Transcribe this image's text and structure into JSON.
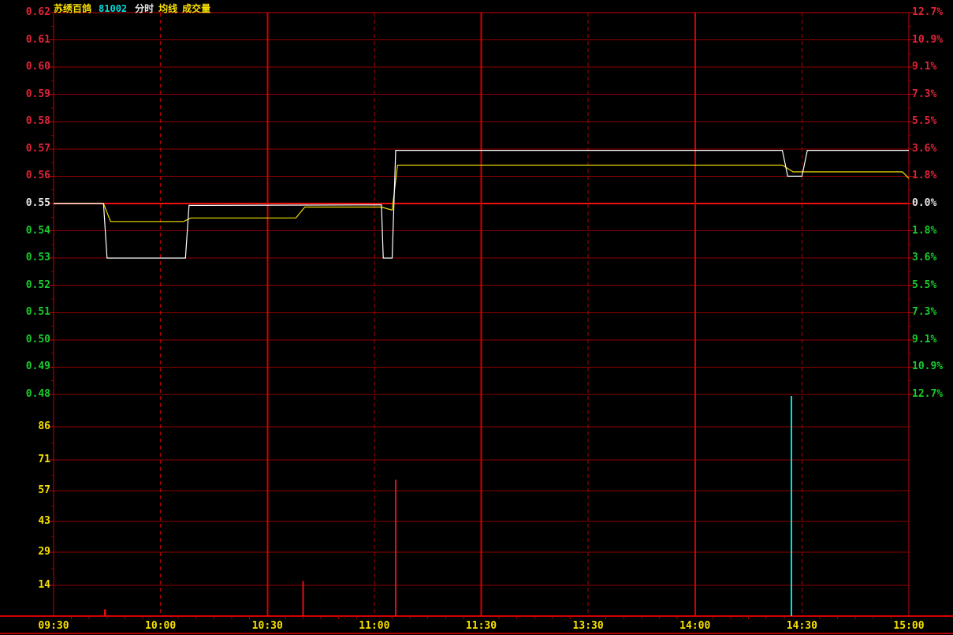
{
  "header": {
    "stock_name": "苏绣百鸽",
    "stock_code": "81002",
    "mode_minute": "分时",
    "mode_avgline": "均线",
    "mode_volume": "成交量"
  },
  "colors": {
    "background": "#000000",
    "up": "#e02438",
    "down": "#18cc2c",
    "flat": "#e6e6e6",
    "yellow": "#f8e000",
    "cyan": "#00dddd",
    "grid": "#8e0000",
    "grid_mid": "#f01010",
    "v_solid": "#d40000",
    "v_dashed": "#b40000",
    "border": "#c80000",
    "price_line": "#ffffff",
    "avg_line": "#f0dc00",
    "vol_bar_red": "#e01010",
    "vol_bar_cyan": "#00e0e0"
  },
  "price_axis": {
    "labels": [
      {
        "text": "0.62",
        "value": 0.62,
        "tone": "up"
      },
      {
        "text": "0.61",
        "value": 0.61,
        "tone": "up"
      },
      {
        "text": "0.60",
        "value": 0.6,
        "tone": "up"
      },
      {
        "text": "0.59",
        "value": 0.59,
        "tone": "up"
      },
      {
        "text": "0.58",
        "value": 0.58,
        "tone": "up"
      },
      {
        "text": "0.57",
        "value": 0.57,
        "tone": "up"
      },
      {
        "text": "0.56",
        "value": 0.56,
        "tone": "up"
      },
      {
        "text": "0.55",
        "value": 0.55,
        "tone": "flat"
      },
      {
        "text": "0.54",
        "value": 0.54,
        "tone": "down"
      },
      {
        "text": "0.53",
        "value": 0.53,
        "tone": "down"
      },
      {
        "text": "0.52",
        "value": 0.52,
        "tone": "down"
      },
      {
        "text": "0.51",
        "value": 0.51,
        "tone": "down"
      },
      {
        "text": "0.50",
        "value": 0.5,
        "tone": "down"
      },
      {
        "text": "0.49",
        "value": 0.49,
        "tone": "down"
      },
      {
        "text": "0.48",
        "value": 0.48,
        "tone": "down"
      }
    ]
  },
  "percent_axis": {
    "labels": [
      {
        "text": "12.7%",
        "value": 0.62,
        "tone": "up"
      },
      {
        "text": "10.9%",
        "value": 0.61,
        "tone": "up"
      },
      {
        "text": "9.1%",
        "value": 0.6,
        "tone": "up"
      },
      {
        "text": "7.3%",
        "value": 0.59,
        "tone": "up"
      },
      {
        "text": "5.5%",
        "value": 0.58,
        "tone": "up"
      },
      {
        "text": "3.6%",
        "value": 0.57,
        "tone": "up"
      },
      {
        "text": "1.8%",
        "value": 0.56,
        "tone": "up"
      },
      {
        "text": "0.0%",
        "value": 0.55,
        "tone": "flat"
      },
      {
        "text": "1.8%",
        "value": 0.54,
        "tone": "down"
      },
      {
        "text": "3.6%",
        "value": 0.53,
        "tone": "down"
      },
      {
        "text": "5.5%",
        "value": 0.52,
        "tone": "down"
      },
      {
        "text": "7.3%",
        "value": 0.51,
        "tone": "down"
      },
      {
        "text": "9.1%",
        "value": 0.5,
        "tone": "down"
      },
      {
        "text": "10.9%",
        "value": 0.49,
        "tone": "down"
      },
      {
        "text": "12.7%",
        "value": 0.48,
        "tone": "down"
      }
    ]
  },
  "volume_axis": {
    "labels": [
      {
        "text": "86",
        "value": 86
      },
      {
        "text": "71",
        "value": 71
      },
      {
        "text": "57",
        "value": 57
      },
      {
        "text": "43",
        "value": 43
      },
      {
        "text": "29",
        "value": 29
      },
      {
        "text": "14",
        "value": 14
      }
    ]
  },
  "time_axis": {
    "labels": [
      {
        "text": "09:30",
        "min": 0
      },
      {
        "text": "10:00",
        "min": 30
      },
      {
        "text": "10:30",
        "min": 60
      },
      {
        "text": "11:00",
        "min": 90
      },
      {
        "text": "11:30",
        "min": 120
      },
      {
        "text": "13:30",
        "min": 150
      },
      {
        "text": "14:00",
        "min": 180
      },
      {
        "text": "14:30",
        "min": 210
      },
      {
        "text": "15:00",
        "min": 240
      }
    ]
  },
  "chart_data": {
    "type": "line",
    "title": "苏绣百鸽 81002 分时 (intraday price/avg/volume)",
    "x_axis": "trading minutes 0-240 (09:30-11:30, 13:00-15:00)",
    "price_ylim": [
      0.48,
      0.62
    ],
    "percent_ylim_pct": [
      -12.7,
      12.7
    ],
    "prev_close": 0.55,
    "volume_ylim": [
      0,
      100
    ],
    "legend_position": "none",
    "grid": "red-on-black",
    "series": [
      {
        "name": "price",
        "color": "white",
        "points": [
          [
            0,
            0.55
          ],
          [
            14,
            0.55
          ],
          [
            15,
            0.53
          ],
          [
            37,
            0.53
          ],
          [
            38,
            0.5493
          ],
          [
            92,
            0.5495
          ],
          [
            92.5,
            0.53
          ],
          [
            95,
            0.53
          ],
          [
            96,
            0.5695
          ],
          [
            204.5,
            0.5695
          ],
          [
            206,
            0.56
          ],
          [
            210,
            0.56
          ],
          [
            211.5,
            0.5695
          ],
          [
            240,
            0.5695
          ]
        ]
      },
      {
        "name": "avg_price",
        "color": "yellow",
        "points": [
          [
            0,
            0.55
          ],
          [
            14,
            0.55
          ],
          [
            16,
            0.5434
          ],
          [
            36.5,
            0.5434
          ],
          [
            38.5,
            0.5447
          ],
          [
            68,
            0.5447
          ],
          [
            70.5,
            0.5487
          ],
          [
            92,
            0.5487
          ],
          [
            95,
            0.5476
          ],
          [
            96.5,
            0.5641
          ],
          [
            204.5,
            0.5641
          ],
          [
            207.5,
            0.5616
          ],
          [
            238.2,
            0.5616
          ],
          [
            240,
            0.5592
          ]
        ]
      }
    ],
    "volume_bars": [
      {
        "min": 14.4,
        "value": 3,
        "color": "red"
      },
      {
        "min": 70,
        "value": 16,
        "color": "red"
      },
      {
        "min": 96,
        "value": 62,
        "color": "red"
      },
      {
        "min": 207,
        "value": 100,
        "color": "cyan"
      }
    ],
    "session_lines": [
      {
        "min": 30,
        "style": "dashed"
      },
      {
        "min": 60,
        "style": "solid"
      },
      {
        "min": 90,
        "style": "dashed"
      },
      {
        "min": 120,
        "style": "solid"
      },
      {
        "min": 150,
        "style": "dashed"
      },
      {
        "min": 180,
        "style": "solid"
      },
      {
        "min": 210,
        "style": "dashed"
      }
    ]
  }
}
